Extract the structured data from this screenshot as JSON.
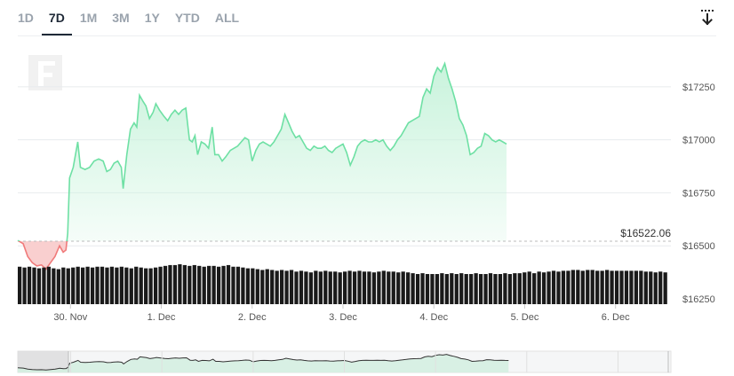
{
  "range_tabs": [
    {
      "label": "1D",
      "active": false
    },
    {
      "label": "7D",
      "active": true
    },
    {
      "label": "1M",
      "active": false
    },
    {
      "label": "3M",
      "active": false
    },
    {
      "label": "1Y",
      "active": false
    },
    {
      "label": "YTD",
      "active": false
    },
    {
      "label": "ALL",
      "active": false
    }
  ],
  "download_icon": "download-icon",
  "watermark_icon": "f-logo-watermark",
  "colors": {
    "up_line": "#6ee0a4",
    "up_fill": "#c9f3dc",
    "down_line": "#f07b7b",
    "down_fill": "#f9cfcf",
    "volume": "#1a1a1a",
    "grid": "#e8ebee",
    "axis_text": "#555555"
  },
  "chart_data": {
    "type": "area",
    "title": "",
    "xlabel": "",
    "ylabel": "",
    "ylim": [
      16250,
      17400
    ],
    "y_ticks": [
      {
        "value": 17250,
        "label": "$17250"
      },
      {
        "value": 17000,
        "label": "$17000"
      },
      {
        "value": 16750,
        "label": "$16750"
      },
      {
        "value": 16500,
        "label": "$16500"
      },
      {
        "value": 16250,
        "label": "$16250"
      }
    ],
    "x_ticks": [
      "30. Nov",
      "1. Dec",
      "2. Dec",
      "3. Dec",
      "4. Dec",
      "5. Dec",
      "6. Dec"
    ],
    "x_start": 29.42,
    "x_end": 36.58,
    "grid": true,
    "baseline": {
      "value": 16522.06,
      "label": "$16522.06"
    },
    "series": [
      {
        "values": [
          [
            29.42,
            16525
          ],
          [
            29.48,
            16510
          ],
          [
            29.53,
            16450
          ],
          [
            29.58,
            16420
          ],
          [
            29.63,
            16405
          ],
          [
            29.68,
            16410
          ],
          [
            29.73,
            16390
          ],
          [
            29.78,
            16420
          ],
          [
            29.83,
            16450
          ],
          [
            29.88,
            16500
          ],
          [
            29.92,
            16470
          ],
          [
            29.95,
            16480
          ],
          [
            29.97,
            16560
          ],
          [
            29.99,
            16820
          ],
          [
            30.03,
            16870
          ],
          [
            30.08,
            16990
          ],
          [
            30.11,
            16870
          ],
          [
            30.16,
            16860
          ],
          [
            30.21,
            16870
          ],
          [
            30.26,
            16900
          ],
          [
            30.31,
            16910
          ],
          [
            30.36,
            16900
          ],
          [
            30.4,
            16850
          ],
          [
            30.44,
            16860
          ],
          [
            30.48,
            16890
          ],
          [
            30.52,
            16900
          ],
          [
            30.56,
            16870
          ],
          [
            30.58,
            16770
          ],
          [
            30.62,
            16930
          ],
          [
            30.66,
            17050
          ],
          [
            30.7,
            17080
          ],
          [
            30.73,
            17060
          ],
          [
            30.76,
            17210
          ],
          [
            30.8,
            17180
          ],
          [
            30.83,
            17160
          ],
          [
            30.87,
            17100
          ],
          [
            30.91,
            17130
          ],
          [
            30.94,
            17170
          ],
          [
            30.98,
            17140
          ],
          [
            31.03,
            17110
          ],
          [
            31.07,
            17090
          ],
          [
            31.11,
            17120
          ],
          [
            31.15,
            17140
          ],
          [
            31.19,
            17120
          ],
          [
            31.23,
            17140
          ],
          [
            31.27,
            17150
          ],
          [
            31.31,
            17000
          ],
          [
            31.34,
            16990
          ],
          [
            31.37,
            17020
          ],
          [
            31.4,
            16930
          ],
          [
            31.44,
            16990
          ],
          [
            31.48,
            16980
          ],
          [
            31.52,
            16960
          ],
          [
            31.56,
            17060
          ],
          [
            31.59,
            16930
          ],
          [
            31.63,
            16930
          ],
          [
            31.67,
            16900
          ],
          [
            31.71,
            16920
          ],
          [
            31.76,
            16950
          ],
          [
            31.8,
            16960
          ],
          [
            31.84,
            16970
          ],
          [
            31.88,
            16990
          ],
          [
            31.92,
            17010
          ],
          [
            31.96,
            17000
          ],
          [
            32.0,
            16900
          ],
          [
            32.04,
            16950
          ],
          [
            32.08,
            16980
          ],
          [
            32.12,
            16990
          ],
          [
            32.16,
            16980
          ],
          [
            32.2,
            16970
          ],
          [
            32.24,
            16990
          ],
          [
            32.28,
            17020
          ],
          [
            32.32,
            17050
          ],
          [
            32.36,
            17120
          ],
          [
            32.4,
            17080
          ],
          [
            32.44,
            17040
          ],
          [
            32.48,
            17010
          ],
          [
            32.52,
            17020
          ],
          [
            32.56,
            16990
          ],
          [
            32.6,
            16960
          ],
          [
            32.64,
            16950
          ],
          [
            32.68,
            16970
          ],
          [
            32.72,
            16960
          ],
          [
            32.76,
            16960
          ],
          [
            32.8,
            16970
          ],
          [
            32.84,
            16950
          ],
          [
            32.88,
            16940
          ],
          [
            32.92,
            16960
          ],
          [
            32.96,
            16970
          ],
          [
            33.0,
            16980
          ],
          [
            33.04,
            16940
          ],
          [
            33.08,
            16880
          ],
          [
            33.12,
            16920
          ],
          [
            33.16,
            16970
          ],
          [
            33.2,
            16990
          ],
          [
            33.24,
            17000
          ],
          [
            33.28,
            16990
          ],
          [
            33.32,
            16990
          ],
          [
            33.36,
            17000
          ],
          [
            33.4,
            16990
          ],
          [
            33.44,
            17000
          ],
          [
            33.48,
            16970
          ],
          [
            33.52,
            16950
          ],
          [
            33.56,
            16970
          ],
          [
            33.6,
            17000
          ],
          [
            33.64,
            17020
          ],
          [
            33.68,
            17050
          ],
          [
            33.72,
            17080
          ],
          [
            33.76,
            17090
          ],
          [
            33.8,
            17100
          ],
          [
            33.84,
            17110
          ],
          [
            33.88,
            17200
          ],
          [
            33.92,
            17240
          ],
          [
            33.96,
            17220
          ],
          [
            34.0,
            17300
          ],
          [
            34.04,
            17340
          ],
          [
            34.08,
            17320
          ],
          [
            34.12,
            17360
          ],
          [
            34.16,
            17290
          ],
          [
            34.2,
            17240
          ],
          [
            34.24,
            17180
          ],
          [
            34.28,
            17100
          ],
          [
            34.32,
            17070
          ],
          [
            34.36,
            17020
          ],
          [
            34.4,
            16930
          ],
          [
            34.44,
            16940
          ],
          [
            34.48,
            16960
          ],
          [
            34.52,
            16970
          ],
          [
            34.56,
            17030
          ],
          [
            34.6,
            17020
          ],
          [
            34.64,
            17000
          ],
          [
            34.68,
            16990
          ],
          [
            34.72,
            17000
          ],
          [
            34.76,
            16990
          ],
          [
            34.8,
            16980
          ]
        ]
      }
    ],
    "volume": [
      46,
      45,
      46,
      45,
      44,
      45,
      46,
      44,
      43,
      45,
      44,
      45,
      46,
      45,
      46,
      45,
      46,
      46,
      45,
      46,
      45,
      46,
      45,
      44,
      46,
      45,
      44,
      44,
      45,
      46,
      47,
      48,
      48,
      49,
      48,
      47,
      48,
      47,
      46,
      47,
      47,
      46,
      47,
      48,
      46,
      46,
      45,
      44,
      44,
      43,
      42,
      43,
      42,
      41,
      42,
      41,
      42,
      40,
      41,
      40,
      39,
      41,
      40,
      41,
      40,
      40,
      39,
      40,
      41,
      40,
      41,
      40,
      40,
      39,
      40,
      41,
      40,
      40,
      39,
      40,
      39,
      38,
      37,
      38,
      37,
      37,
      37,
      38,
      37,
      38,
      37,
      38,
      37,
      37,
      38,
      37,
      37,
      38,
      37,
      37,
      38,
      37,
      38,
      38,
      39,
      40,
      38,
      40,
      39,
      40,
      41,
      40,
      41,
      41,
      42,
      42,
      41,
      42,
      42,
      41,
      41,
      42,
      41,
      41,
      41,
      41,
      41,
      41,
      41,
      40,
      40,
      39,
      40,
      39
    ],
    "volume_unit": "relative"
  }
}
